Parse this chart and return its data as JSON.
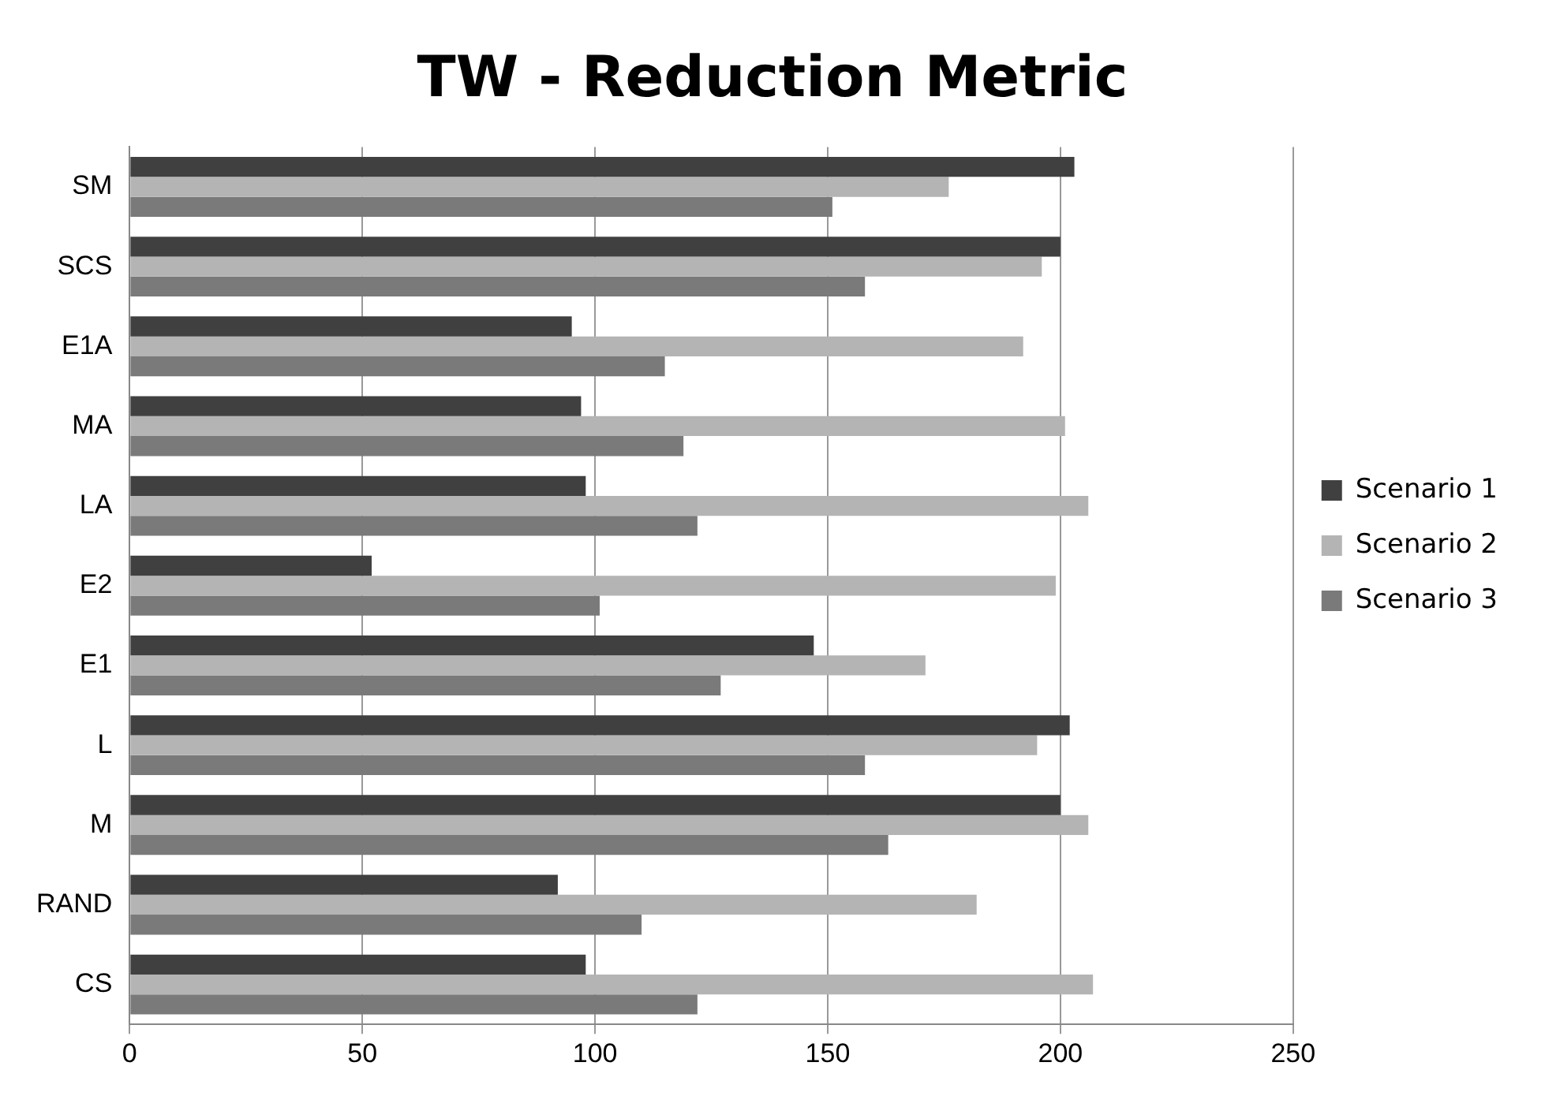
{
  "chart_data": {
    "type": "bar",
    "orientation": "horizontal",
    "title": "TW - Reduction Metric",
    "categories": [
      "SM",
      "SCS",
      "E1A",
      "MA",
      "LA",
      "E2",
      "E1",
      "L",
      "M",
      "RAND",
      "CS"
    ],
    "series": [
      {
        "name": "Scenario 1",
        "color": "#404040",
        "values": [
          203,
          200,
          95,
          97,
          98,
          52,
          147,
          202,
          200,
          92,
          98
        ]
      },
      {
        "name": "Scenario 2",
        "color": "#b4b4b4",
        "values": [
          176,
          196,
          192,
          201,
          206,
          199,
          171,
          195,
          206,
          182,
          207
        ]
      },
      {
        "name": "Scenario 3",
        "color": "#7a7a7a",
        "values": [
          151,
          158,
          115,
          119,
          122,
          101,
          127,
          158,
          163,
          110,
          122
        ]
      }
    ],
    "xlim": [
      0,
      250
    ],
    "xticks": [
      0,
      50,
      100,
      150,
      200,
      250
    ],
    "grid": "x",
    "legend": "right"
  }
}
